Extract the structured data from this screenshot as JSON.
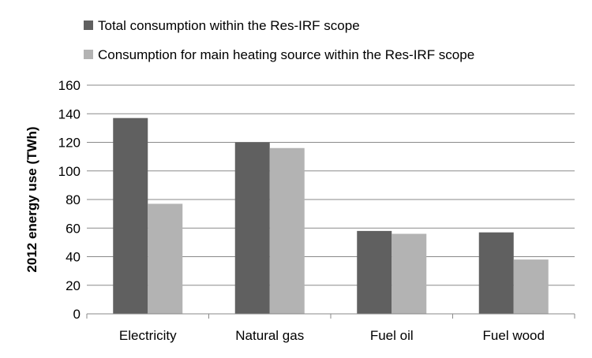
{
  "chart_data": {
    "type": "bar",
    "categories": [
      "Electricity",
      "Natural gas",
      "Fuel oil",
      "Fuel wood"
    ],
    "series": [
      {
        "name": "Total consumption within the Res-IRF scope",
        "values": [
          137,
          120,
          58,
          57
        ],
        "color": "#606060"
      },
      {
        "name": "Consumption for main heating source within the Res-IRF scope",
        "values": [
          77,
          116,
          56,
          38
        ],
        "color": "#b3b3b3"
      }
    ],
    "ylabel": "2012 energy use (TWh)",
    "ylim": [
      0,
      160
    ],
    "yticks": [
      0,
      20,
      40,
      60,
      80,
      100,
      120,
      140,
      160
    ],
    "grid": true,
    "legend_position": "top"
  }
}
